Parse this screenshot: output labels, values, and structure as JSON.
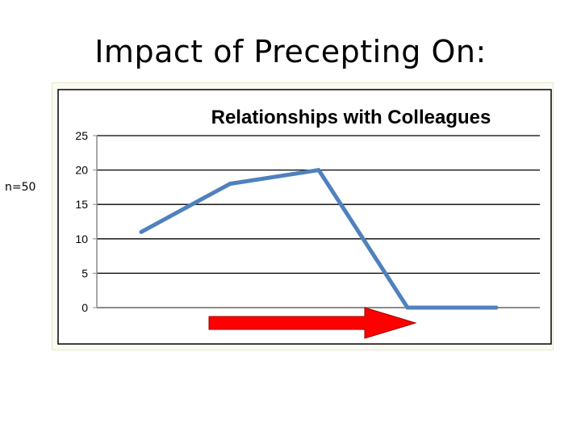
{
  "slide": {
    "title": "Impact of Precepting On:",
    "note": "n=50"
  },
  "colors": {
    "series": "#4f81bd",
    "arrow": "#ff0000",
    "arrow_border": "#9b0000",
    "grid": "#000000"
  },
  "chart_data": {
    "type": "line",
    "title": "Relationships with Colleagues",
    "xlabel": "",
    "ylabel": "",
    "x": [
      1,
      2,
      3,
      4,
      5
    ],
    "series": [
      {
        "values": [
          11,
          18,
          20,
          0,
          0
        ]
      }
    ],
    "ylim": [
      0,
      25
    ],
    "yticks": [
      0,
      5,
      10,
      15,
      20,
      25
    ],
    "grid": true,
    "legend": "none"
  }
}
